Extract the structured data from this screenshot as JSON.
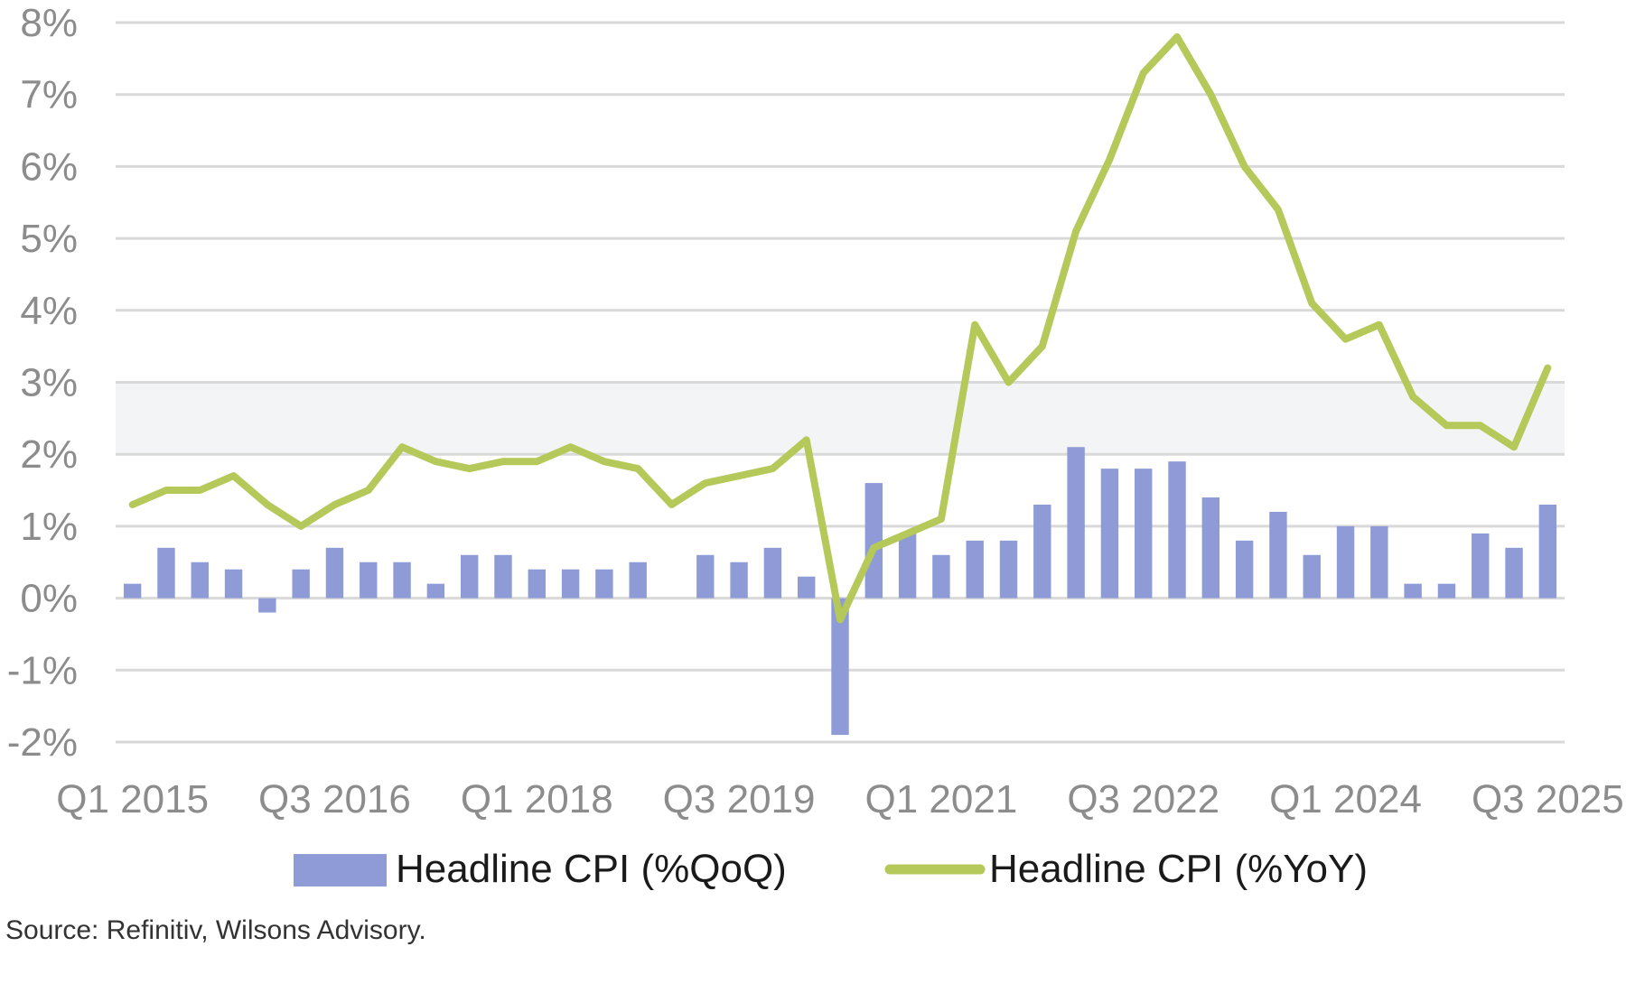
{
  "chart_data": {
    "type": "bar",
    "title": "",
    "xlabel": "",
    "ylabel": "",
    "ylim": [
      -2,
      8
    ],
    "yticks": [
      "-2%",
      "-1%",
      "0%",
      "1%",
      "2%",
      "3%",
      "4%",
      "5%",
      "6%",
      "7%",
      "8%"
    ],
    "grid": true,
    "target_band": [
      2,
      3
    ],
    "legend_position": "bottom-center",
    "categories": [
      "Q1 2015",
      "Q2 2015",
      "Q3 2015",
      "Q4 2015",
      "Q1 2016",
      "Q2 2016",
      "Q3 2016",
      "Q4 2016",
      "Q1 2017",
      "Q2 2017",
      "Q3 2017",
      "Q4 2017",
      "Q1 2018",
      "Q2 2018",
      "Q3 2018",
      "Q4 2018",
      "Q1 2019",
      "Q2 2019",
      "Q3 2019",
      "Q4 2019",
      "Q1 2020",
      "Q2 2020",
      "Q3 2020",
      "Q4 2020",
      "Q1 2021",
      "Q2 2021",
      "Q3 2021",
      "Q4 2021",
      "Q1 2022",
      "Q2 2022",
      "Q3 2022",
      "Q4 2022",
      "Q1 2023",
      "Q2 2023",
      "Q3 2023",
      "Q4 2023",
      "Q1 2024",
      "Q2 2024",
      "Q3 2024",
      "Q4 2024",
      "Q1 2025",
      "Q2 2025",
      "Q3 2025"
    ],
    "x_tick_labels": [
      "Q1 2015",
      "Q3 2016",
      "Q1 2018",
      "Q3 2019",
      "Q1 2021",
      "Q3 2022",
      "Q1 2024",
      "Q3 2025"
    ],
    "series": [
      {
        "name": "Headline CPI (%QoQ)",
        "type": "bar",
        "color": "#8e9bd6",
        "values": [
          0.2,
          0.7,
          0.5,
          0.4,
          -0.2,
          0.4,
          0.7,
          0.5,
          0.5,
          0.2,
          0.6,
          0.6,
          0.4,
          0.4,
          0.4,
          0.5,
          0.0,
          0.6,
          0.5,
          0.7,
          0.3,
          -1.9,
          1.6,
          0.9,
          0.6,
          0.8,
          0.8,
          1.3,
          2.1,
          1.8,
          1.8,
          1.9,
          1.4,
          0.8,
          1.2,
          0.6,
          1.0,
          1.0,
          0.2,
          0.2,
          0.9,
          0.7,
          1.3
        ]
      },
      {
        "name": "Headline CPI (%YoY)",
        "type": "line",
        "color": "#b5c95a",
        "values": [
          1.3,
          1.5,
          1.5,
          1.7,
          1.3,
          1.0,
          1.3,
          1.5,
          2.1,
          1.9,
          1.8,
          1.9,
          1.9,
          2.1,
          1.9,
          1.8,
          1.3,
          1.6,
          1.7,
          1.8,
          2.2,
          -0.3,
          0.7,
          0.9,
          1.1,
          3.8,
          3.0,
          3.5,
          5.1,
          6.1,
          7.3,
          7.8,
          7.0,
          6.0,
          5.4,
          4.1,
          3.6,
          3.8,
          2.8,
          2.4,
          2.4,
          2.1,
          3.2
        ]
      }
    ]
  },
  "legend": {
    "qoq_label": "Headline CPI (%QoQ)",
    "yoy_label": "Headline CPI (%YoY)"
  },
  "source": "Source: Refinitiv, Wilsons Advisory."
}
